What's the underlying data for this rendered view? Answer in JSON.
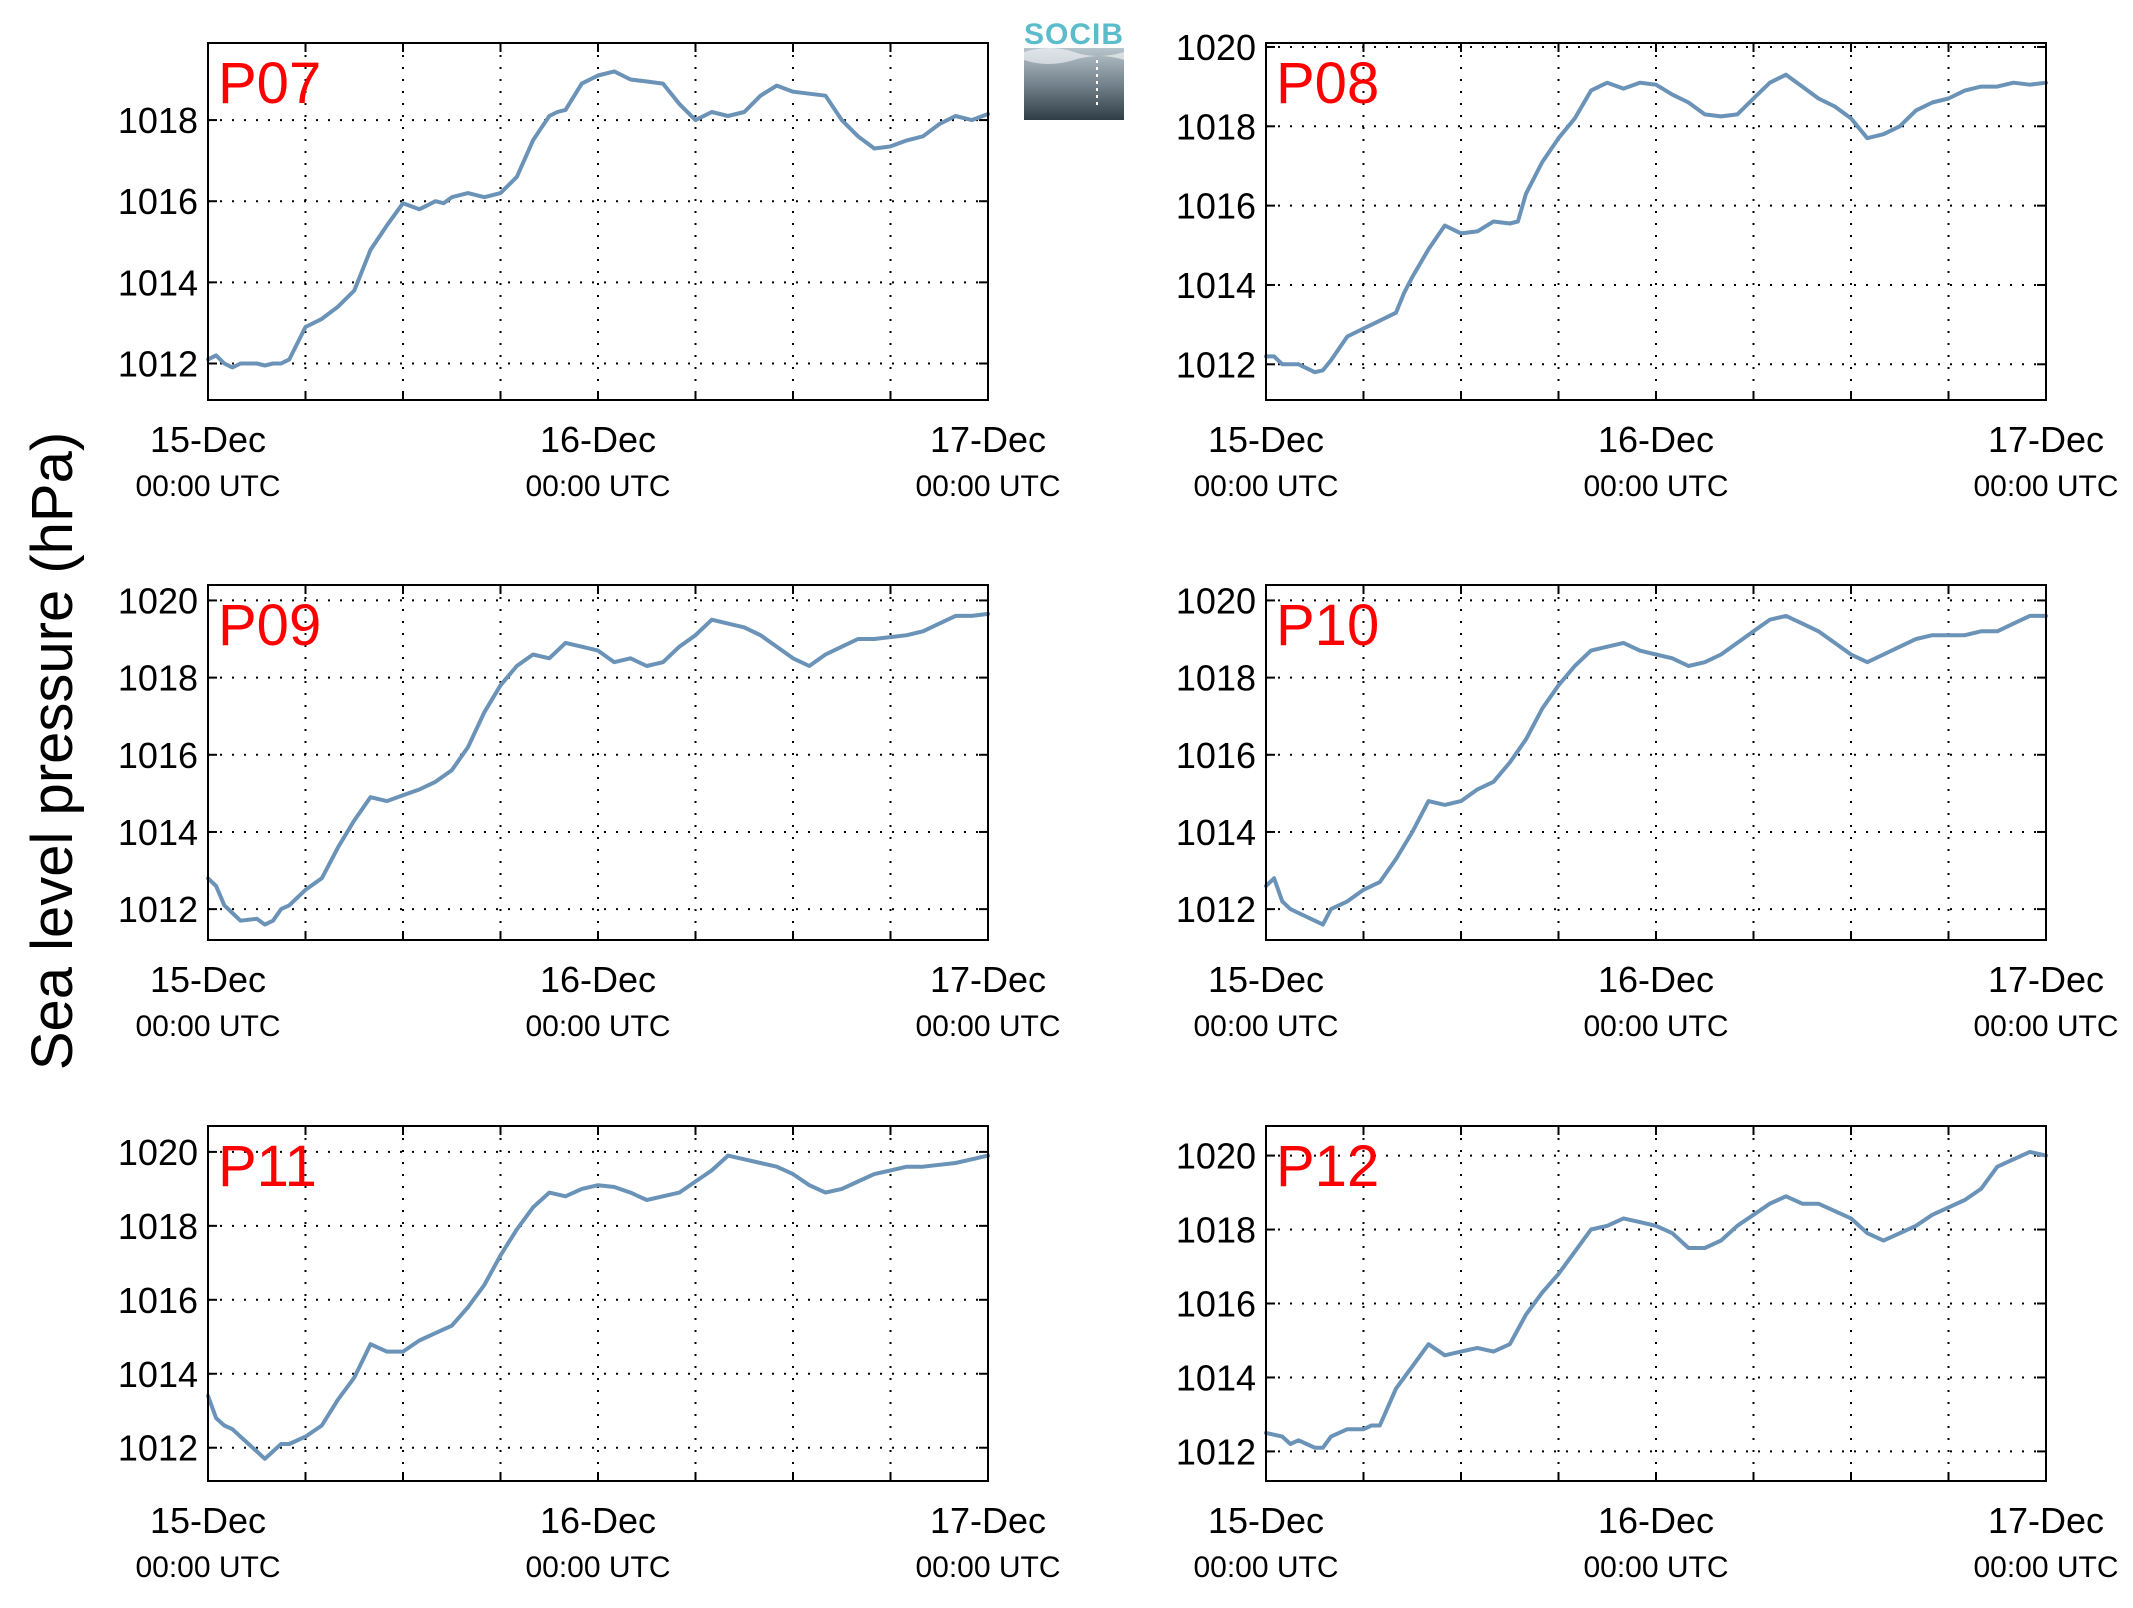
{
  "figure": {
    "ylabel": "Sea level pressure (hPa)",
    "logo_text": "SOCIB",
    "colors": {
      "line": "#6a93b7",
      "panel_label": "#ff0000",
      "axis": "#000000",
      "grid": "#000000"
    }
  },
  "chart_data": [
    {
      "type": "line",
      "panel_label": "P07",
      "x_ticks": [
        {
          "day": "15-Dec",
          "time": "00:00 UTC"
        },
        {
          "day": "16-Dec",
          "time": "00:00 UTC"
        },
        {
          "day": "17-Dec",
          "time": "00:00 UTC"
        }
      ],
      "y_ticks": [
        1012,
        1014,
        1016,
        1018
      ],
      "xlim_hours": [
        0,
        48
      ],
      "ylim": [
        1011.1,
        1019.9
      ],
      "grid": true,
      "series": [
        {
          "x_hours": [
            0,
            0.5,
            1,
            1.5,
            2,
            3,
            3.5,
            4,
            4.5,
            5,
            6,
            7,
            8,
            9,
            10,
            11,
            12,
            13,
            13.5,
            14,
            14.5,
            15,
            16,
            17,
            18,
            19,
            20,
            20.5,
            21,
            21.5,
            22,
            23,
            24,
            25,
            26,
            27,
            28,
            29,
            30,
            31,
            32,
            33,
            34,
            35,
            36,
            37,
            38,
            39,
            40,
            41,
            42,
            43,
            44,
            45,
            46,
            47,
            48
          ],
          "y": [
            1012.1,
            1012.2,
            1012.0,
            1011.9,
            1012.0,
            1012.0,
            1011.95,
            1012.0,
            1012.0,
            1012.1,
            1012.9,
            1013.1,
            1013.4,
            1013.8,
            1014.8,
            1015.4,
            1015.95,
            1015.8,
            1015.9,
            1016.0,
            1015.95,
            1016.1,
            1016.2,
            1016.1,
            1016.2,
            1016.6,
            1017.5,
            1017.8,
            1018.1,
            1018.2,
            1018.25,
            1018.9,
            1019.1,
            1019.2,
            1019.0,
            1018.95,
            1018.9,
            1018.4,
            1018.0,
            1018.2,
            1018.1,
            1018.2,
            1018.6,
            1018.85,
            1018.7,
            1018.65,
            1018.6,
            1018.0,
            1017.6,
            1017.3,
            1017.35,
            1017.5,
            1017.6,
            1017.9,
            1018.1,
            1018.0,
            1018.15
          ]
        }
      ]
    },
    {
      "type": "line",
      "panel_label": "P08",
      "x_ticks": [
        {
          "day": "15-Dec",
          "time": "00:00 UTC"
        },
        {
          "day": "16-Dec",
          "time": "00:00 UTC"
        },
        {
          "day": "17-Dec",
          "time": "00:00 UTC"
        }
      ],
      "y_ticks": [
        1012,
        1014,
        1016,
        1018,
        1020
      ],
      "xlim_hours": [
        0,
        48
      ],
      "ylim": [
        1011.1,
        1020.1
      ],
      "grid": true,
      "series": [
        {
          "x_hours": [
            0,
            0.5,
            1,
            2,
            3,
            3.5,
            4,
            5,
            6,
            7,
            8,
            8.5,
            9,
            10,
            11,
            12,
            13,
            14,
            15,
            15.5,
            16,
            17,
            18,
            19,
            20,
            20.5,
            21,
            22,
            23,
            24,
            25,
            26,
            27,
            28,
            29,
            30,
            31,
            32,
            33,
            34,
            35,
            36,
            37,
            38,
            39,
            40,
            41,
            42,
            43,
            44,
            45,
            46,
            47,
            48
          ],
          "y": [
            1012.2,
            1012.2,
            1012.0,
            1012.0,
            1011.8,
            1011.85,
            1012.1,
            1012.7,
            1012.9,
            1013.1,
            1013.3,
            1013.8,
            1014.2,
            1014.9,
            1015.5,
            1015.3,
            1015.35,
            1015.6,
            1015.55,
            1015.6,
            1016.3,
            1017.1,
            1017.7,
            1018.2,
            1018.9,
            1019.0,
            1019.1,
            1018.95,
            1019.1,
            1019.05,
            1018.8,
            1018.6,
            1018.3,
            1018.25,
            1018.3,
            1018.7,
            1019.1,
            1019.3,
            1019.0,
            1018.7,
            1018.5,
            1018.2,
            1017.7,
            1017.8,
            1018.0,
            1018.4,
            1018.6,
            1018.7,
            1018.9,
            1019.0,
            1019.0,
            1019.1,
            1019.05,
            1019.1
          ]
        }
      ]
    },
    {
      "type": "line",
      "panel_label": "P09",
      "x_ticks": [
        {
          "day": "15-Dec",
          "time": "00:00 UTC"
        },
        {
          "day": "16-Dec",
          "time": "00:00 UTC"
        },
        {
          "day": "17-Dec",
          "time": "00:00 UTC"
        }
      ],
      "y_ticks": [
        1012,
        1014,
        1016,
        1018,
        1020
      ],
      "xlim_hours": [
        0,
        48
      ],
      "ylim": [
        1011.2,
        1020.4
      ],
      "grid": true,
      "series": [
        {
          "x_hours": [
            0,
            0.5,
            1,
            1.5,
            2,
            3,
            3.5,
            4,
            4.5,
            5,
            6,
            7,
            8,
            9,
            10,
            11,
            12,
            13,
            14,
            15,
            16,
            17,
            18,
            19,
            20,
            21,
            22,
            23,
            24,
            25,
            26,
            27,
            28,
            29,
            30,
            31,
            32,
            33,
            34,
            35,
            36,
            37,
            38,
            39,
            40,
            41,
            42,
            43,
            44,
            45,
            46,
            47,
            48
          ],
          "y": [
            1012.8,
            1012.6,
            1012.1,
            1011.9,
            1011.7,
            1011.75,
            1011.6,
            1011.7,
            1012.0,
            1012.1,
            1012.5,
            1012.8,
            1013.6,
            1014.3,
            1014.9,
            1014.8,
            1014.95,
            1015.1,
            1015.3,
            1015.6,
            1016.2,
            1017.1,
            1017.8,
            1018.3,
            1018.6,
            1018.5,
            1018.9,
            1018.8,
            1018.7,
            1018.4,
            1018.5,
            1018.3,
            1018.4,
            1018.8,
            1019.1,
            1019.5,
            1019.4,
            1019.3,
            1019.1,
            1018.8,
            1018.5,
            1018.3,
            1018.6,
            1018.8,
            1019.0,
            1019.0,
            1019.05,
            1019.1,
            1019.2,
            1019.4,
            1019.6,
            1019.6,
            1019.65
          ]
        }
      ]
    },
    {
      "type": "line",
      "panel_label": "P10",
      "x_ticks": [
        {
          "day": "15-Dec",
          "time": "00:00 UTC"
        },
        {
          "day": "16-Dec",
          "time": "00:00 UTC"
        },
        {
          "day": "17-Dec",
          "time": "00:00 UTC"
        }
      ],
      "y_ticks": [
        1012,
        1014,
        1016,
        1018,
        1020
      ],
      "xlim_hours": [
        0,
        48
      ],
      "ylim": [
        1011.2,
        1020.4
      ],
      "grid": true,
      "series": [
        {
          "x_hours": [
            0,
            0.5,
            1,
            1.5,
            2,
            3,
            3.5,
            4,
            5,
            6,
            7,
            8,
            9,
            10,
            11,
            12,
            13,
            14,
            15,
            16,
            17,
            18,
            19,
            20,
            21,
            22,
            23,
            24,
            25,
            26,
            27,
            28,
            29,
            30,
            31,
            32,
            33,
            34,
            35,
            36,
            37,
            38,
            39,
            40,
            41,
            42,
            43,
            44,
            45,
            46,
            47,
            48
          ],
          "y": [
            1012.6,
            1012.8,
            1012.2,
            1012.0,
            1011.9,
            1011.7,
            1011.6,
            1012.0,
            1012.2,
            1012.5,
            1012.7,
            1013.3,
            1014.0,
            1014.8,
            1014.7,
            1014.8,
            1015.1,
            1015.3,
            1015.8,
            1016.4,
            1017.2,
            1017.8,
            1018.3,
            1018.7,
            1018.8,
            1018.9,
            1018.7,
            1018.6,
            1018.5,
            1018.3,
            1018.4,
            1018.6,
            1018.9,
            1019.2,
            1019.5,
            1019.6,
            1019.4,
            1019.2,
            1018.9,
            1018.6,
            1018.4,
            1018.6,
            1018.8,
            1019.0,
            1019.1,
            1019.1,
            1019.1,
            1019.2,
            1019.2,
            1019.4,
            1019.6,
            1019.6
          ]
        }
      ]
    },
    {
      "type": "line",
      "panel_label": "P11",
      "x_ticks": [
        {
          "day": "15-Dec",
          "time": "00:00 UTC"
        },
        {
          "day": "16-Dec",
          "time": "00:00 UTC"
        },
        {
          "day": "17-Dec",
          "time": "00:00 UTC"
        }
      ],
      "y_ticks": [
        1012,
        1014,
        1016,
        1018,
        1020
      ],
      "xlim_hours": [
        0,
        48
      ],
      "ylim": [
        1011.1,
        1020.7
      ],
      "grid": true,
      "series": [
        {
          "x_hours": [
            0,
            0.5,
            1,
            1.5,
            2,
            2.5,
            3,
            3.5,
            4,
            4.5,
            5,
            6,
            7,
            8,
            9,
            10,
            11,
            12,
            13,
            14,
            15,
            16,
            17,
            18,
            19,
            20,
            21,
            22,
            23,
            24,
            25,
            26,
            27,
            28,
            29,
            30,
            31,
            32,
            33,
            34,
            35,
            36,
            37,
            38,
            39,
            40,
            41,
            42,
            43,
            44,
            45,
            46,
            47,
            48
          ],
          "y": [
            1013.4,
            1012.8,
            1012.6,
            1012.5,
            1012.3,
            1012.1,
            1011.9,
            1011.7,
            1011.9,
            1012.1,
            1012.1,
            1012.3,
            1012.6,
            1013.3,
            1013.9,
            1014.8,
            1014.6,
            1014.6,
            1014.9,
            1015.1,
            1015.3,
            1015.8,
            1016.4,
            1017.2,
            1017.9,
            1018.5,
            1018.9,
            1018.8,
            1019.0,
            1019.1,
            1019.05,
            1018.9,
            1018.7,
            1018.8,
            1018.9,
            1019.2,
            1019.5,
            1019.9,
            1019.8,
            1019.7,
            1019.6,
            1019.4,
            1019.1,
            1018.9,
            1019.0,
            1019.2,
            1019.4,
            1019.5,
            1019.6,
            1019.6,
            1019.65,
            1019.7,
            1019.8,
            1019.9
          ]
        }
      ]
    },
    {
      "type": "line",
      "panel_label": "P12",
      "x_ticks": [
        {
          "day": "15-Dec",
          "time": "00:00 UTC"
        },
        {
          "day": "16-Dec",
          "time": "00:00 UTC"
        },
        {
          "day": "17-Dec",
          "time": "00:00 UTC"
        }
      ],
      "y_ticks": [
        1012,
        1014,
        1016,
        1018,
        1020
      ],
      "xlim_hours": [
        0,
        48
      ],
      "ylim": [
        1011.2,
        1020.8
      ],
      "grid": true,
      "series": [
        {
          "x_hours": [
            0,
            1,
            1.5,
            2,
            2.5,
            3,
            3.5,
            4,
            5,
            6,
            6.5,
            7,
            8,
            9,
            10,
            11,
            12,
            13,
            14,
            15,
            16,
            17,
            18,
            19,
            20,
            21,
            22,
            23,
            24,
            25,
            26,
            27,
            28,
            29,
            30,
            31,
            32,
            33,
            34,
            35,
            36,
            37,
            38,
            39,
            40,
            41,
            42,
            43,
            44,
            45,
            46,
            47,
            48
          ],
          "y": [
            1012.5,
            1012.4,
            1012.2,
            1012.3,
            1012.2,
            1012.1,
            1012.1,
            1012.4,
            1012.6,
            1012.6,
            1012.7,
            1012.7,
            1013.7,
            1014.3,
            1014.9,
            1014.6,
            1014.7,
            1014.8,
            1014.7,
            1014.9,
            1015.7,
            1016.3,
            1016.8,
            1017.4,
            1018.0,
            1018.1,
            1018.3,
            1018.2,
            1018.1,
            1017.9,
            1017.5,
            1017.5,
            1017.7,
            1018.1,
            1018.4,
            1018.7,
            1018.9,
            1018.7,
            1018.7,
            1018.5,
            1018.3,
            1017.9,
            1017.7,
            1017.9,
            1018.1,
            1018.4,
            1018.6,
            1018.8,
            1019.1,
            1019.7,
            1019.9,
            1020.1,
            1020.0
          ]
        }
      ]
    }
  ]
}
